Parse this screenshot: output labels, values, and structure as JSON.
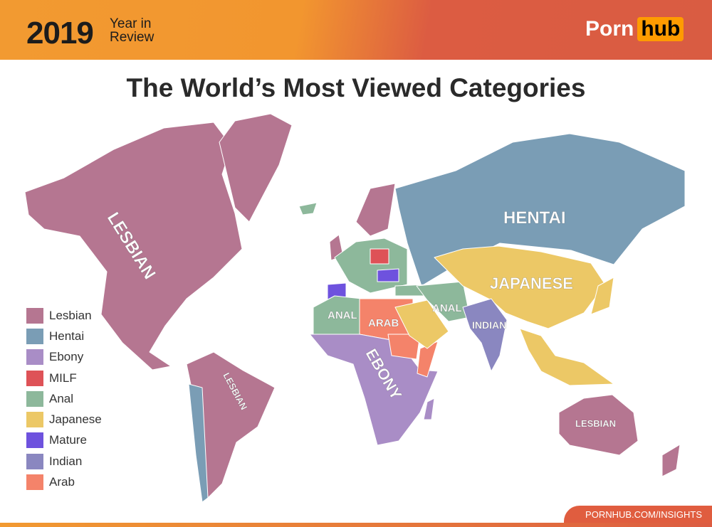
{
  "header": {
    "year": "2019",
    "subtitle_line1": "Year in",
    "subtitle_line2": "Review",
    "logo_part1": "Porn",
    "logo_part2": "hub"
  },
  "title": "The World’s Most Viewed Categories",
  "colors": {
    "Lesbian": "#b57691",
    "Hentai": "#7a9db5",
    "Ebony": "#a98dc6",
    "MILF": "#de5257",
    "Anal": "#8db89b",
    "Japanese": "#ecc866",
    "Mature": "#6e52de",
    "Indian": "#8a87c0",
    "Arab": "#f4836a"
  },
  "legend": [
    {
      "label": "Lesbian",
      "color": "#b57691"
    },
    {
      "label": "Hentai",
      "color": "#7a9db5"
    },
    {
      "label": "Ebony",
      "color": "#a98dc6"
    },
    {
      "label": "MILF",
      "color": "#de5257"
    },
    {
      "label": "Anal",
      "color": "#8db89b"
    },
    {
      "label": "Japanese",
      "color": "#ecc866"
    },
    {
      "label": "Mature",
      "color": "#6e52de"
    },
    {
      "label": "Indian",
      "color": "#8a87c0"
    },
    {
      "label": "Arab",
      "color": "#f4836a"
    }
  ],
  "map_labels": {
    "north_america": "LESBIAN",
    "russia": "HENTAI",
    "east_asia": "JAPANESE",
    "north_africa": "ANAL",
    "middle_east": "ANAL",
    "egypt": "ARAB",
    "africa": "EBONY",
    "india": "INDIAN",
    "south_america": "LESBIAN",
    "australia": "LESBIAN"
  },
  "footer": "PORNHUB.COM/INSIGHTS"
}
